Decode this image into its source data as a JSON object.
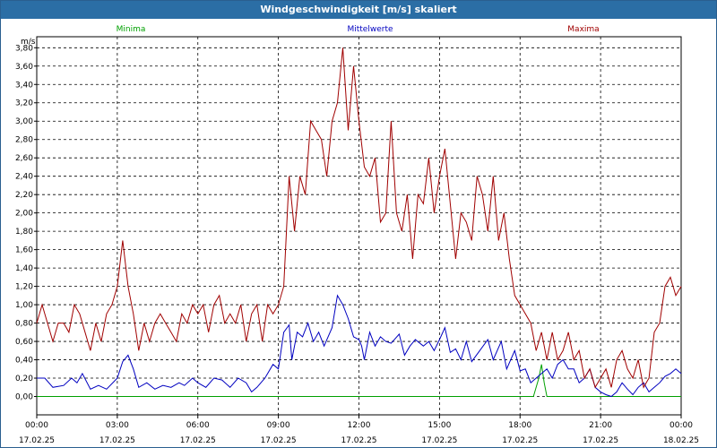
{
  "window": {
    "title": "Windgeschwindigkeit [m/s] skaliert"
  },
  "chart_data": {
    "type": "line",
    "title": "Windgeschwindigkeit [m/s] skaliert",
    "ylabel": "m/s",
    "ylim": [
      -0.2,
      3.92
    ],
    "yticks": [
      "3,80",
      "3,60",
      "3,40",
      "3,20",
      "3,00",
      "2,80",
      "2,60",
      "2,40",
      "2,20",
      "2,00",
      "1,80",
      "1,60",
      "1,40",
      "1,20",
      "1,00",
      "0,80",
      "0,60",
      "0,40",
      "0,20",
      "0,00"
    ],
    "xlim_hours": [
      0,
      24
    ],
    "xticks": [
      {
        "time": "00:00",
        "date": "17.02.25"
      },
      {
        "time": "03:00",
        "date": "17.02.25"
      },
      {
        "time": "06:00",
        "date": "17.02.25"
      },
      {
        "time": "09:00",
        "date": "17.02.25"
      },
      {
        "time": "12:00",
        "date": "17.02.25"
      },
      {
        "time": "15:00",
        "date": "17.02.25"
      },
      {
        "time": "18:00",
        "date": "17.02.25"
      },
      {
        "time": "21:00",
        "date": "17.02.25"
      },
      {
        "time": "00:00",
        "date": "18.02.25"
      }
    ],
    "grid": true,
    "legend_position": "top",
    "series": [
      {
        "name": "Minima",
        "color": "#00a000",
        "points": [
          [
            0,
            0
          ],
          [
            18.5,
            0
          ],
          [
            18.7,
            0.2
          ],
          [
            18.8,
            0.35
          ],
          [
            18.9,
            0.15
          ],
          [
            19.0,
            0
          ],
          [
            24,
            0
          ]
        ]
      },
      {
        "name": "Mittelwerte",
        "color": "#0000c0",
        "points": [
          [
            0,
            0.2
          ],
          [
            0.3,
            0.2
          ],
          [
            0.6,
            0.1
          ],
          [
            1.0,
            0.12
          ],
          [
            1.3,
            0.2
          ],
          [
            1.5,
            0.15
          ],
          [
            1.7,
            0.25
          ],
          [
            2.0,
            0.08
          ],
          [
            2.3,
            0.12
          ],
          [
            2.6,
            0.08
          ],
          [
            3.0,
            0.2
          ],
          [
            3.2,
            0.38
          ],
          [
            3.4,
            0.45
          ],
          [
            3.6,
            0.3
          ],
          [
            3.8,
            0.1
          ],
          [
            4.1,
            0.15
          ],
          [
            4.4,
            0.08
          ],
          [
            4.7,
            0.12
          ],
          [
            5.0,
            0.1
          ],
          [
            5.3,
            0.15
          ],
          [
            5.5,
            0.12
          ],
          [
            5.8,
            0.2
          ],
          [
            6.0,
            0.15
          ],
          [
            6.3,
            0.1
          ],
          [
            6.6,
            0.2
          ],
          [
            6.9,
            0.18
          ],
          [
            7.2,
            0.1
          ],
          [
            7.5,
            0.2
          ],
          [
            7.8,
            0.15
          ],
          [
            8.0,
            0.05
          ],
          [
            8.2,
            0.1
          ],
          [
            8.5,
            0.2
          ],
          [
            8.8,
            0.35
          ],
          [
            9.0,
            0.3
          ],
          [
            9.2,
            0.7
          ],
          [
            9.4,
            0.78
          ],
          [
            9.5,
            0.4
          ],
          [
            9.7,
            0.7
          ],
          [
            9.9,
            0.65
          ],
          [
            10.1,
            0.8
          ],
          [
            10.3,
            0.6
          ],
          [
            10.5,
            0.7
          ],
          [
            10.7,
            0.55
          ],
          [
            11.0,
            0.75
          ],
          [
            11.2,
            1.1
          ],
          [
            11.4,
            1.0
          ],
          [
            11.6,
            0.85
          ],
          [
            11.8,
            0.65
          ],
          [
            12.0,
            0.62
          ],
          [
            12.1,
            0.55
          ],
          [
            12.2,
            0.4
          ],
          [
            12.4,
            0.7
          ],
          [
            12.6,
            0.55
          ],
          [
            12.8,
            0.65
          ],
          [
            13.0,
            0.6
          ],
          [
            13.2,
            0.58
          ],
          [
            13.5,
            0.68
          ],
          [
            13.7,
            0.45
          ],
          [
            13.9,
            0.55
          ],
          [
            14.1,
            0.62
          ],
          [
            14.4,
            0.55
          ],
          [
            14.6,
            0.6
          ],
          [
            14.8,
            0.5
          ],
          [
            15.0,
            0.62
          ],
          [
            15.2,
            0.75
          ],
          [
            15.4,
            0.48
          ],
          [
            15.6,
            0.52
          ],
          [
            15.8,
            0.4
          ],
          [
            16.0,
            0.6
          ],
          [
            16.2,
            0.38
          ],
          [
            16.5,
            0.5
          ],
          [
            16.8,
            0.62
          ],
          [
            17.0,
            0.4
          ],
          [
            17.3,
            0.6
          ],
          [
            17.5,
            0.3
          ],
          [
            17.8,
            0.5
          ],
          [
            18.0,
            0.28
          ],
          [
            18.2,
            0.3
          ],
          [
            18.4,
            0.15
          ],
          [
            18.6,
            0.2
          ],
          [
            18.8,
            0.25
          ],
          [
            19.0,
            0.3
          ],
          [
            19.2,
            0.2
          ],
          [
            19.4,
            0.35
          ],
          [
            19.6,
            0.4
          ],
          [
            19.8,
            0.3
          ],
          [
            20.0,
            0.3
          ],
          [
            20.2,
            0.15
          ],
          [
            20.4,
            0.2
          ],
          [
            20.6,
            0.3
          ],
          [
            20.8,
            0.1
          ],
          [
            21.0,
            0.05
          ],
          [
            21.2,
            0.02
          ],
          [
            21.4,
            0.0
          ],
          [
            21.6,
            0.05
          ],
          [
            21.8,
            0.15
          ],
          [
            22.0,
            0.08
          ],
          [
            22.2,
            0.02
          ],
          [
            22.4,
            0.1
          ],
          [
            22.6,
            0.15
          ],
          [
            22.8,
            0.05
          ],
          [
            23.0,
            0.1
          ],
          [
            23.2,
            0.15
          ],
          [
            23.4,
            0.22
          ],
          [
            23.6,
            0.25
          ],
          [
            23.8,
            0.3
          ],
          [
            24.0,
            0.25
          ]
        ]
      },
      {
        "name": "Maxima",
        "color": "#a00000",
        "points": [
          [
            0,
            0.8
          ],
          [
            0.2,
            1.0
          ],
          [
            0.4,
            0.8
          ],
          [
            0.6,
            0.6
          ],
          [
            0.8,
            0.8
          ],
          [
            1.0,
            0.8
          ],
          [
            1.2,
            0.7
          ],
          [
            1.4,
            1.0
          ],
          [
            1.6,
            0.9
          ],
          [
            1.8,
            0.7
          ],
          [
            2.0,
            0.5
          ],
          [
            2.2,
            0.8
          ],
          [
            2.4,
            0.6
          ],
          [
            2.6,
            0.9
          ],
          [
            2.8,
            1.0
          ],
          [
            3.0,
            1.2
          ],
          [
            3.2,
            1.7
          ],
          [
            3.4,
            1.2
          ],
          [
            3.6,
            0.9
          ],
          [
            3.8,
            0.5
          ],
          [
            4.0,
            0.8
          ],
          [
            4.2,
            0.6
          ],
          [
            4.4,
            0.8
          ],
          [
            4.6,
            0.9
          ],
          [
            4.8,
            0.8
          ],
          [
            5.0,
            0.7
          ],
          [
            5.2,
            0.6
          ],
          [
            5.4,
            0.9
          ],
          [
            5.6,
            0.8
          ],
          [
            5.8,
            1.0
          ],
          [
            6.0,
            0.9
          ],
          [
            6.2,
            1.0
          ],
          [
            6.4,
            0.7
          ],
          [
            6.6,
            1.0
          ],
          [
            6.8,
            1.1
          ],
          [
            7.0,
            0.8
          ],
          [
            7.2,
            0.9
          ],
          [
            7.4,
            0.8
          ],
          [
            7.6,
            1.0
          ],
          [
            7.8,
            0.6
          ],
          [
            8.0,
            0.9
          ],
          [
            8.2,
            1.0
          ],
          [
            8.4,
            0.6
          ],
          [
            8.6,
            1.0
          ],
          [
            8.8,
            0.9
          ],
          [
            9.0,
            1.0
          ],
          [
            9.2,
            1.2
          ],
          [
            9.4,
            2.4
          ],
          [
            9.6,
            1.8
          ],
          [
            9.8,
            2.4
          ],
          [
            10.0,
            2.2
          ],
          [
            10.2,
            3.0
          ],
          [
            10.4,
            2.9
          ],
          [
            10.6,
            2.8
          ],
          [
            10.8,
            2.4
          ],
          [
            11.0,
            3.0
          ],
          [
            11.2,
            3.2
          ],
          [
            11.4,
            3.8
          ],
          [
            11.6,
            2.9
          ],
          [
            11.8,
            3.6
          ],
          [
            12.0,
            3.0
          ],
          [
            12.2,
            2.5
          ],
          [
            12.4,
            2.4
          ],
          [
            12.6,
            2.6
          ],
          [
            12.8,
            1.9
          ],
          [
            13.0,
            2.0
          ],
          [
            13.2,
            3.0
          ],
          [
            13.4,
            2.0
          ],
          [
            13.6,
            1.8
          ],
          [
            13.8,
            2.2
          ],
          [
            14.0,
            1.5
          ],
          [
            14.2,
            2.2
          ],
          [
            14.4,
            2.1
          ],
          [
            14.6,
            2.6
          ],
          [
            14.8,
            2.0
          ],
          [
            15.0,
            2.4
          ],
          [
            15.2,
            2.7
          ],
          [
            15.4,
            2.1
          ],
          [
            15.6,
            1.5
          ],
          [
            15.8,
            2.0
          ],
          [
            16.0,
            1.9
          ],
          [
            16.2,
            1.7
          ],
          [
            16.4,
            2.4
          ],
          [
            16.6,
            2.2
          ],
          [
            16.8,
            1.8
          ],
          [
            17.0,
            2.4
          ],
          [
            17.2,
            1.7
          ],
          [
            17.4,
            2.0
          ],
          [
            17.6,
            1.5
          ],
          [
            17.8,
            1.1
          ],
          [
            18.0,
            1.0
          ],
          [
            18.2,
            0.9
          ],
          [
            18.4,
            0.8
          ],
          [
            18.6,
            0.5
          ],
          [
            18.8,
            0.7
          ],
          [
            19.0,
            0.4
          ],
          [
            19.2,
            0.7
          ],
          [
            19.4,
            0.4
          ],
          [
            19.6,
            0.5
          ],
          [
            19.8,
            0.7
          ],
          [
            20.0,
            0.4
          ],
          [
            20.2,
            0.5
          ],
          [
            20.4,
            0.2
          ],
          [
            20.6,
            0.3
          ],
          [
            20.8,
            0.1
          ],
          [
            21.0,
            0.2
          ],
          [
            21.2,
            0.3
          ],
          [
            21.4,
            0.1
          ],
          [
            21.6,
            0.4
          ],
          [
            21.8,
            0.5
          ],
          [
            22.0,
            0.3
          ],
          [
            22.2,
            0.2
          ],
          [
            22.4,
            0.4
          ],
          [
            22.6,
            0.1
          ],
          [
            22.8,
            0.2
          ],
          [
            23.0,
            0.7
          ],
          [
            23.2,
            0.8
          ],
          [
            23.4,
            1.2
          ],
          [
            23.6,
            1.3
          ],
          [
            23.8,
            1.1
          ],
          [
            24.0,
            1.2
          ]
        ]
      }
    ]
  }
}
